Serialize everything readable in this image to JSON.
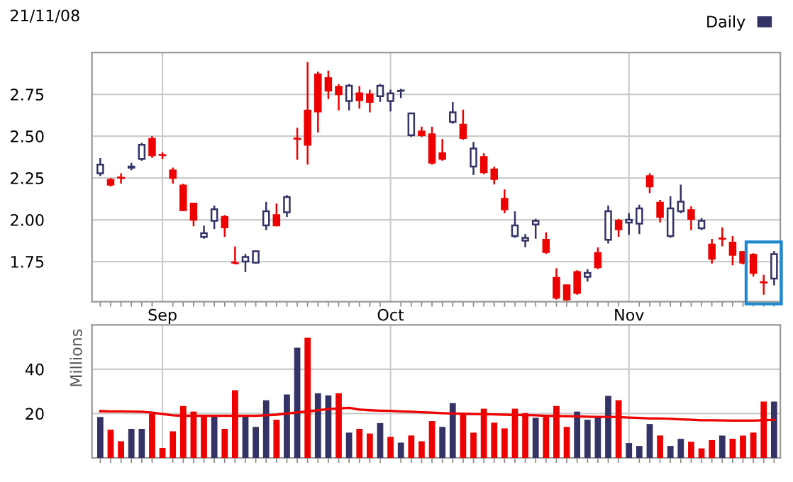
{
  "chart_data": [
    {
      "type": "candlestick",
      "title": "21/11/08",
      "legend": "top right",
      "grid": true,
      "tick_labels": "xy",
      "categories": [
        null,
        null,
        null,
        null,
        null,
        null,
        "Sep",
        null,
        null,
        null,
        null,
        null,
        null,
        null,
        null,
        null,
        null,
        null,
        null,
        null,
        null,
        null,
        null,
        null,
        null,
        null,
        null,
        null,
        "Oct",
        null,
        null,
        null,
        null,
        null,
        null,
        null,
        null,
        null,
        null,
        null,
        null,
        null,
        null,
        null,
        null,
        null,
        null,
        null,
        null,
        null,
        null,
        "Nov",
        null,
        null,
        null,
        null,
        null,
        null,
        null,
        null,
        null,
        null,
        null,
        null,
        null,
        null
      ],
      "ylim": [
        1.51,
        3.0
      ],
      "yticks": [
        1.75,
        {
          "value": 2.0,
          "label": "2.00"
        },
        2.25,
        {
          "value": 2.5,
          "label": "2.50"
        },
        2.75
      ],
      "series": [
        {
          "name": "Daily",
          "color": "#333366",
          "ohlc": [
            [
              2.278,
              2.364,
              2.267,
              2.33
            ],
            [
              2.239,
              2.244,
              2.205,
              2.21
            ],
            [
              2.253,
              2.273,
              2.222,
              2.25
            ],
            [
              2.312,
              2.335,
              2.301,
              2.318
            ],
            [
              2.364,
              2.455,
              2.358,
              2.449
            ],
            [
              2.483,
              2.494,
              2.375,
              2.386
            ],
            [
              2.389,
              2.398,
              2.369,
              2.386
            ],
            [
              2.295,
              2.307,
              2.222,
              2.25
            ],
            [
              2.205,
              2.21,
              2.057,
              2.057
            ],
            [
              2.097,
              2.097,
              1.966,
              2.0
            ],
            [
              1.898,
              1.96,
              1.892,
              1.92
            ],
            [
              1.994,
              2.08,
              1.949,
              2.063
            ],
            [
              2.017,
              2.023,
              1.903,
              1.955
            ],
            [
              1.745,
              1.835,
              1.739,
              1.74
            ],
            [
              1.75,
              1.79,
              1.693,
              1.778
            ],
            [
              1.744,
              1.812,
              1.744,
              1.812
            ],
            [
              1.966,
              2.102,
              1.943,
              2.051
            ],
            [
              2.028,
              2.091,
              1.966,
              1.966
            ],
            [
              2.045,
              2.142,
              2.023,
              2.136
            ],
            [
              2.486,
              2.545,
              2.364,
              2.483
            ],
            [
              2.653,
              2.9375,
              2.335,
              2.449
            ],
            [
              2.869,
              2.881,
              2.528,
              2.648
            ],
            [
              2.847,
              2.886,
              2.727,
              2.773
            ],
            [
              2.795,
              2.807,
              2.659,
              2.75
            ],
            [
              2.71,
              2.807,
              2.659,
              2.801
            ],
            [
              2.756,
              2.795,
              2.67,
              2.716
            ],
            [
              2.75,
              2.773,
              2.648,
              2.705
            ],
            [
              2.739,
              2.807,
              2.71,
              2.801
            ],
            [
              2.71,
              2.773,
              2.653,
              2.756
            ],
            [
              2.77,
              2.778,
              2.733,
              2.773
            ],
            [
              2.506,
              2.636,
              2.5,
              2.636
            ],
            [
              2.528,
              2.551,
              2.5,
              2.506
            ],
            [
              2.511,
              2.551,
              2.335,
              2.341
            ],
            [
              2.398,
              2.477,
              2.358,
              2.364
            ],
            [
              2.585,
              2.699,
              2.58,
              2.642
            ],
            [
              2.568,
              2.653,
              2.483,
              2.489
            ],
            [
              2.318,
              2.46,
              2.273,
              2.426
            ],
            [
              2.375,
              2.392,
              2.278,
              2.284
            ],
            [
              2.301,
              2.312,
              2.216,
              2.244
            ],
            [
              2.125,
              2.176,
              2.045,
              2.063
            ],
            [
              1.903,
              2.045,
              1.898,
              1.966
            ],
            [
              1.875,
              1.909,
              1.841,
              1.892
            ],
            [
              1.972,
              2.0,
              1.892,
              1.994
            ],
            [
              1.881,
              1.92,
              1.801,
              1.807
            ],
            [
              1.653,
              1.705,
              1.528,
              1.534
            ],
            [
              1.608,
              1.608,
              1.52,
              1.523
            ],
            [
              1.688,
              1.693,
              1.557,
              1.563
            ],
            [
              1.659,
              1.699,
              1.636,
              1.682
            ],
            [
              1.801,
              1.83,
              1.71,
              1.716
            ],
            [
              1.881,
              2.08,
              1.864,
              2.051
            ],
            [
              1.994,
              2.0,
              1.903,
              1.943
            ],
            [
              1.983,
              2.034,
              1.915,
              2.0
            ],
            [
              1.977,
              2.085,
              1.92,
              2.068
            ],
            [
              2.261,
              2.273,
              2.165,
              2.199
            ],
            [
              2.102,
              2.114,
              1.989,
              2.017
            ],
            [
              1.903,
              2.136,
              1.898,
              2.068
            ],
            [
              2.051,
              2.205,
              2.045,
              2.108
            ],
            [
              2.057,
              2.074,
              1.943,
              2.006
            ],
            [
              1.949,
              2.006,
              1.943,
              1.994
            ],
            [
              1.852,
              1.881,
              1.744,
              1.767
            ],
            [
              1.888,
              1.949,
              1.847,
              1.886
            ],
            [
              1.864,
              1.898,
              1.733,
              1.79
            ],
            [
              1.807,
              1.807,
              1.739,
              1.744
            ],
            [
              1.79,
              1.795,
              1.665,
              1.682
            ],
            [
              1.627,
              1.665,
              1.557,
              1.625
            ],
            [
              1.648,
              1.807,
              1.614,
              1.795
            ]
          ],
          "colors": [
            "#333366",
            "#ee0000",
            "#ee0000",
            "#333366",
            "#333366",
            "#ee0000",
            "#ee0000",
            "#ee0000",
            "#ee0000",
            "#ee0000",
            "#333366",
            "#333366",
            "#ee0000",
            "#ee0000",
            "#333366",
            "#333366",
            "#333366",
            "#ee0000",
            "#333366",
            "#ee0000",
            "#ee0000",
            "#ee0000",
            "#ee0000",
            "#ee0000",
            "#333366",
            "#ee0000",
            "#ee0000",
            "#333366",
            "#333366",
            "#333366",
            "#333366",
            "#ee0000",
            "#ee0000",
            "#ee0000",
            "#333366",
            "#ee0000",
            "#333366",
            "#ee0000",
            "#ee0000",
            "#ee0000",
            "#333366",
            "#333366",
            "#333366",
            "#ee0000",
            "#ee0000",
            "#ee0000",
            "#ee0000",
            "#333366",
            "#ee0000",
            "#333366",
            "#ee0000",
            "#333366",
            "#333366",
            "#ee0000",
            "#ee0000",
            "#333366",
            "#333366",
            "#ee0000",
            "#333366",
            "#ee0000",
            "#ee0000",
            "#ee0000",
            "#ee0000",
            "#ee0000",
            "#ee0000",
            "#333366"
          ]
        }
      ]
    },
    {
      "type": "bar",
      "ylabel": "Millions",
      "grid": true,
      "tick_labels": "y",
      "categories": [
        null,
        null,
        null,
        null,
        null,
        null,
        null,
        null,
        null,
        null,
        null,
        null,
        null,
        null,
        null,
        null,
        null,
        null,
        null,
        null,
        null,
        null,
        null,
        null,
        null,
        null,
        null,
        null,
        null,
        null,
        null,
        null,
        null,
        null,
        null,
        null,
        null,
        null,
        null,
        null,
        null,
        null,
        null,
        null,
        null,
        null,
        null,
        null,
        null,
        null,
        null,
        null,
        null,
        null,
        null,
        null,
        null,
        null,
        null,
        null,
        null,
        null,
        null,
        null,
        null,
        null
      ],
      "ylim": [
        0,
        60
      ],
      "yticks": [
        20,
        40
      ],
      "series": [
        {
          "type": "bar",
          "values": [
            18.5,
            12.7,
            7.5,
            13.1,
            13.1,
            20,
            4.5,
            12.0,
            23.4,
            20.9,
            19.1,
            18.7,
            13.1,
            30.5,
            18.9,
            14.0,
            26.0,
            17.2,
            28.6,
            49.7,
            54.2,
            29.2,
            28.2,
            29.2,
            11.4,
            13.1,
            11.0,
            15.7,
            9.5,
            6.9,
            10.1,
            7.5,
            16.6,
            14.0,
            24.7,
            19.8,
            11.4,
            22.2,
            15.9,
            13.3,
            22.2,
            20.2,
            18.1,
            18.5,
            23.4,
            14.0,
            20.9,
            17.2,
            18.5,
            28.0,
            26.0,
            6.7,
            5.4,
            15.3,
            10.1,
            5.4,
            8.6,
            7.3,
            4.3,
            8.0,
            10.1,
            8.6,
            10.1,
            11.4,
            25.4,
            25.4
          ],
          "colors": [
            "#333366",
            "#ee0000",
            "#ee0000",
            "#333366",
            "#333366",
            "#ee0000",
            "#ee0000",
            "#ee0000",
            "#ee0000",
            "#ee0000",
            "#ee0000",
            "#333366",
            "#ee0000",
            "#ee0000",
            "#333366",
            "#333366",
            "#333366",
            "#ee0000",
            "#333366",
            "#333366",
            "#ee0000",
            "#333366",
            "#333366",
            "#ee0000",
            "#333366",
            "#ee0000",
            "#ee0000",
            "#333366",
            "#ee0000",
            "#333366",
            "#ee0000",
            "#ee0000",
            "#ee0000",
            "#333366",
            "#333366",
            "#ee0000",
            "#ee0000",
            "#ee0000",
            "#ee0000",
            "#ee0000",
            "#ee0000",
            "#ee0000",
            "#333366",
            "#ee0000",
            "#ee0000",
            "#ee0000",
            "#333366",
            "#333366",
            "#333366",
            "#333366",
            "#ee0000",
            "#333366",
            "#333366",
            "#333366",
            "#ee0000",
            "#333366",
            "#333366",
            "#ee0000",
            "#ee0000",
            "#ee0000",
            "#333366",
            "#ee0000",
            "#ee0000",
            "#ee0000",
            "#ee0000",
            "#333366"
          ]
        },
        {
          "type": "line",
          "color": "#ee0000",
          "values": [
            21.1,
            21.0,
            21.0,
            20.9,
            20.8,
            20.4,
            19.8,
            19.2,
            19.0,
            19.0,
            19.0,
            19.0,
            19.0,
            19.0,
            19.0,
            19.0,
            19.2,
            19.5,
            20.0,
            20.5,
            21.0,
            21.5,
            22.0,
            22.3,
            22.6,
            21.8,
            21.5,
            21.3,
            21.2,
            21.0,
            20.8,
            20.6,
            20.4,
            20.2,
            20.0,
            19.9,
            19.8,
            19.7,
            19.6,
            19.5,
            19.4,
            19.3,
            19.2,
            19.0,
            18.9,
            18.8,
            18.7,
            18.6,
            18.5,
            18.5,
            18.4,
            18.2,
            18.0,
            17.8,
            17.8,
            17.6,
            17.4,
            17.2,
            17.0,
            17.0,
            16.9,
            16.8,
            16.8,
            16.8,
            17.0,
            17.2
          ]
        }
      ]
    }
  ]
}
